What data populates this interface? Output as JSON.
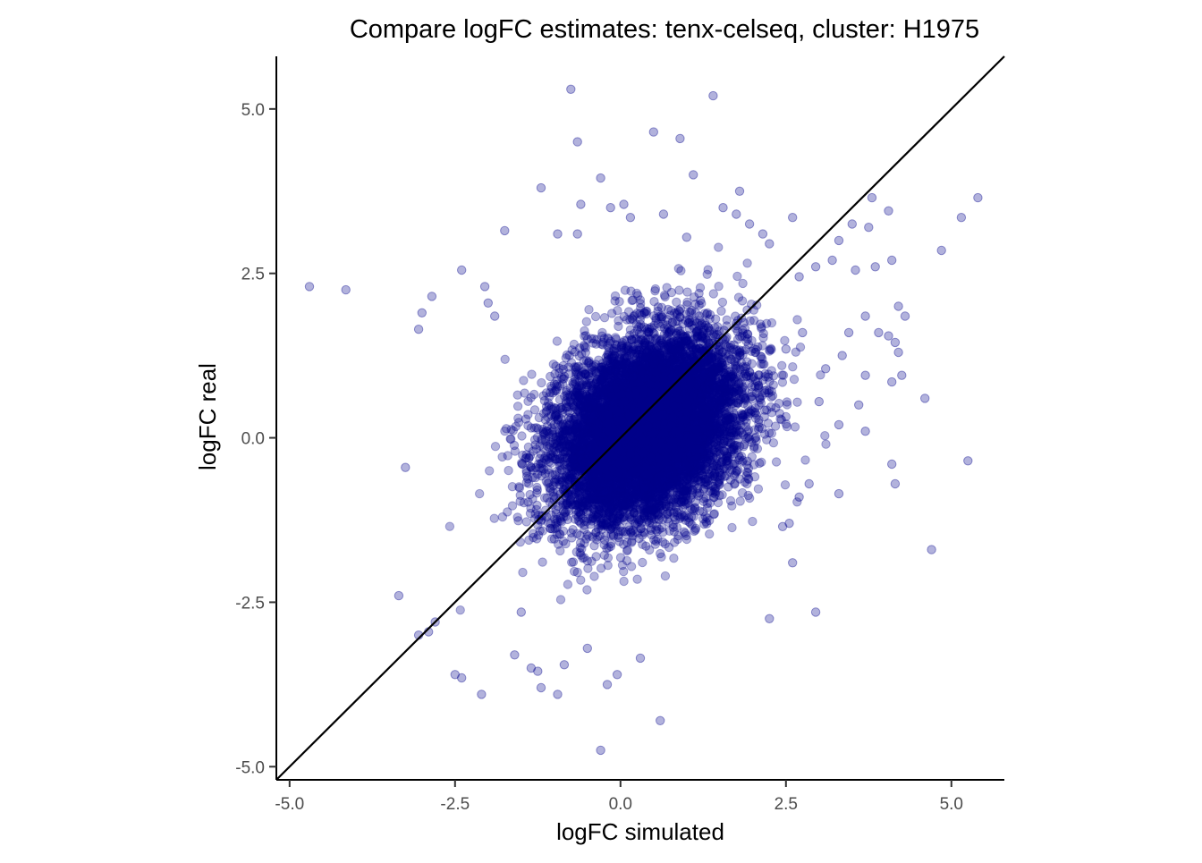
{
  "chart_data": {
    "type": "scatter",
    "title": "Compare logFC estimates: tenx-celseq, cluster: H1975",
    "xlabel": "logFC simulated",
    "ylabel": "logFC real",
    "xlim": [
      -5.2,
      5.8
    ],
    "ylim": [
      -5.2,
      5.8
    ],
    "x_ticks": [
      -5.0,
      -2.5,
      0.0,
      2.5,
      5.0
    ],
    "x_tick_labels": [
      "-5.0",
      "-2.5",
      "0.0",
      "2.5",
      "5.0"
    ],
    "y_ticks": [
      -5.0,
      -2.5,
      0.0,
      2.5,
      5.0
    ],
    "y_tick_labels": [
      "-5.0",
      "-2.5",
      "0.0",
      "2.5",
      "5.0"
    ],
    "grid": false,
    "legend": "none",
    "reference_line": {
      "slope": 1,
      "intercept": 0,
      "color": "#000000"
    },
    "point_color": "#00008B",
    "point_alpha": 0.3,
    "dense_core": {
      "n": 9000,
      "center": [
        0.4,
        0.15
      ],
      "sd": [
        0.72,
        0.72
      ],
      "correlation": 0.3,
      "note": "approximate distribution of the dense central cloud"
    },
    "points": [
      [
        -4.7,
        2.3
      ],
      [
        -4.15,
        2.25
      ],
      [
        -3.25,
        -0.45
      ],
      [
        -3.35,
        -2.4
      ],
      [
        -3.05,
        -3.0
      ],
      [
        -2.9,
        -2.95
      ],
      [
        -2.8,
        -2.8
      ],
      [
        -2.85,
        2.15
      ],
      [
        -3.0,
        1.9
      ],
      [
        -3.05,
        1.65
      ],
      [
        -2.4,
        2.55
      ],
      [
        -2.05,
        2.3
      ],
      [
        -2.0,
        2.05
      ],
      [
        -1.9,
        1.85
      ],
      [
        -1.75,
        3.15
      ],
      [
        -1.2,
        3.8
      ],
      [
        -2.5,
        -3.6
      ],
      [
        -2.4,
        -3.65
      ],
      [
        -2.1,
        -3.9
      ],
      [
        -1.6,
        -3.3
      ],
      [
        -1.35,
        -3.5
      ],
      [
        -1.2,
        -3.8
      ],
      [
        -0.95,
        -3.9
      ],
      [
        -0.85,
        -3.45
      ],
      [
        -0.3,
        -4.75
      ],
      [
        -0.2,
        -3.75
      ],
      [
        -0.05,
        -3.6
      ],
      [
        0.6,
        -4.3
      ],
      [
        -1.5,
        -2.65
      ],
      [
        -1.25,
        -3.55
      ],
      [
        -0.5,
        -3.2
      ],
      [
        0.3,
        -3.35
      ],
      [
        -0.75,
        5.3
      ],
      [
        -0.65,
        4.5
      ],
      [
        0.5,
        4.65
      ],
      [
        0.9,
        4.55
      ],
      [
        1.4,
        5.2
      ],
      [
        1.1,
        4.0
      ],
      [
        -0.3,
        3.95
      ],
      [
        -0.6,
        3.55
      ],
      [
        -0.15,
        3.5
      ],
      [
        0.05,
        3.55
      ],
      [
        0.15,
        3.35
      ],
      [
        0.65,
        3.4
      ],
      [
        1.0,
        3.05
      ],
      [
        -0.95,
        3.1
      ],
      [
        -0.65,
        3.1
      ],
      [
        1.55,
        3.5
      ],
      [
        1.8,
        3.75
      ],
      [
        1.75,
        3.4
      ],
      [
        1.95,
        3.25
      ],
      [
        2.15,
        3.1
      ],
      [
        2.25,
        2.95
      ],
      [
        2.6,
        3.35
      ],
      [
        3.3,
        3.0
      ],
      [
        3.5,
        3.25
      ],
      [
        3.75,
        3.2
      ],
      [
        3.8,
        3.65
      ],
      [
        4.05,
        3.45
      ],
      [
        5.15,
        3.35
      ],
      [
        5.4,
        3.65
      ],
      [
        4.85,
        2.85
      ],
      [
        3.85,
        2.6
      ],
      [
        4.1,
        2.7
      ],
      [
        3.55,
        2.55
      ],
      [
        3.2,
        2.7
      ],
      [
        2.95,
        2.6
      ],
      [
        2.7,
        2.45
      ],
      [
        4.2,
        2.0
      ],
      [
        4.3,
        1.85
      ],
      [
        3.7,
        1.85
      ],
      [
        3.9,
        1.6
      ],
      [
        4.05,
        1.55
      ],
      [
        4.15,
        1.45
      ],
      [
        4.2,
        1.3
      ],
      [
        4.25,
        0.95
      ],
      [
        4.1,
        0.85
      ],
      [
        3.7,
        0.95
      ],
      [
        4.6,
        0.6
      ],
      [
        3.6,
        0.5
      ],
      [
        3.3,
        0.2
      ],
      [
        3.7,
        0.1
      ],
      [
        4.1,
        -0.4
      ],
      [
        4.15,
        -0.7
      ],
      [
        5.25,
        -0.35
      ],
      [
        4.7,
        -1.7
      ],
      [
        3.3,
        -0.85
      ],
      [
        2.95,
        -2.65
      ],
      [
        2.25,
        -2.75
      ],
      [
        2.6,
        -1.9
      ],
      [
        2.55,
        -1.3
      ],
      [
        2.45,
        -1.35
      ],
      [
        2.7,
        -0.9
      ],
      [
        2.85,
        -0.7
      ],
      [
        3.0,
        0.55
      ],
      [
        3.1,
        1.05
      ],
      [
        3.35,
        1.25
      ],
      [
        3.45,
        1.6
      ],
      [
        2.75,
        1.6
      ],
      [
        2.5,
        1.35
      ]
    ]
  }
}
